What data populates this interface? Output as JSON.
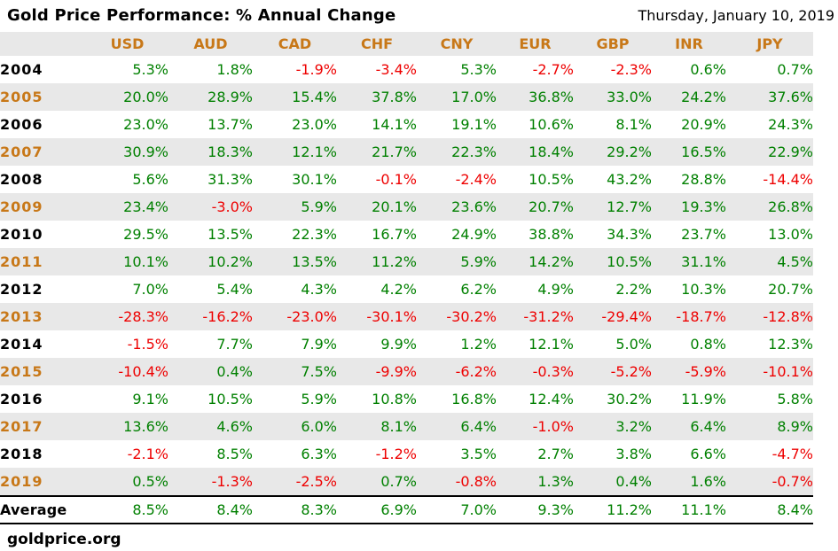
{
  "title": "Gold Price Performance: % Annual Change",
  "date": "Thursday, January 10, 2019",
  "source": "goldprice.org",
  "colors": {
    "accent_orange": "#C87818",
    "positive_green": "#008000",
    "negative_red": "#EE0000",
    "band_gray": "#E8E8E8",
    "text_black": "#000000"
  },
  "chart_data": {
    "type": "table",
    "title": "Gold Price Performance: % Annual Change",
    "value_format": "percent_one_decimal",
    "columns": [
      "USD",
      "AUD",
      "CAD",
      "CHF",
      "CNY",
      "EUR",
      "GBP",
      "INR",
      "JPY"
    ],
    "rows": [
      {
        "year": "2004",
        "values": [
          5.3,
          1.8,
          -1.9,
          -3.4,
          5.3,
          -2.7,
          -2.3,
          0.6,
          0.7
        ]
      },
      {
        "year": "2005",
        "values": [
          20.0,
          28.9,
          15.4,
          37.8,
          17.0,
          36.8,
          33.0,
          24.2,
          37.6
        ]
      },
      {
        "year": "2006",
        "values": [
          23.0,
          13.7,
          23.0,
          14.1,
          19.1,
          10.6,
          8.1,
          20.9,
          24.3
        ]
      },
      {
        "year": "2007",
        "values": [
          30.9,
          18.3,
          12.1,
          21.7,
          22.3,
          18.4,
          29.2,
          16.5,
          22.9
        ]
      },
      {
        "year": "2008",
        "values": [
          5.6,
          31.3,
          30.1,
          -0.1,
          -2.4,
          10.5,
          43.2,
          28.8,
          -14.4
        ]
      },
      {
        "year": "2009",
        "values": [
          23.4,
          -3.0,
          5.9,
          20.1,
          23.6,
          20.7,
          12.7,
          19.3,
          26.8
        ]
      },
      {
        "year": "2010",
        "values": [
          29.5,
          13.5,
          22.3,
          16.7,
          24.9,
          38.8,
          34.3,
          23.7,
          13.0
        ]
      },
      {
        "year": "2011",
        "values": [
          10.1,
          10.2,
          13.5,
          11.2,
          5.9,
          14.2,
          10.5,
          31.1,
          4.5
        ]
      },
      {
        "year": "2012",
        "values": [
          7.0,
          5.4,
          4.3,
          4.2,
          6.2,
          4.9,
          2.2,
          10.3,
          20.7
        ]
      },
      {
        "year": "2013",
        "values": [
          -28.3,
          -16.2,
          -23.0,
          -30.1,
          -30.2,
          -31.2,
          -29.4,
          -18.7,
          -12.8
        ]
      },
      {
        "year": "2014",
        "values": [
          -1.5,
          7.7,
          7.9,
          9.9,
          1.2,
          12.1,
          5.0,
          0.8,
          12.3
        ]
      },
      {
        "year": "2015",
        "values": [
          -10.4,
          0.4,
          7.5,
          -9.9,
          -6.2,
          -0.3,
          -5.2,
          -5.9,
          -10.1
        ]
      },
      {
        "year": "2016",
        "values": [
          9.1,
          10.5,
          5.9,
          10.8,
          16.8,
          12.4,
          30.2,
          11.9,
          5.8
        ]
      },
      {
        "year": "2017",
        "values": [
          13.6,
          4.6,
          6.0,
          8.1,
          6.4,
          -1.0,
          3.2,
          6.4,
          8.9
        ]
      },
      {
        "year": "2018",
        "values": [
          -2.1,
          8.5,
          6.3,
          -1.2,
          3.5,
          2.7,
          3.8,
          6.6,
          -4.7
        ]
      },
      {
        "year": "2019",
        "values": [
          0.5,
          -1.3,
          -2.5,
          0.7,
          -0.8,
          1.3,
          0.4,
          1.6,
          -0.7
        ]
      }
    ],
    "average_label": "Average",
    "average_values": [
      8.5,
      8.4,
      8.3,
      6.9,
      7.0,
      9.3,
      11.2,
      11.1,
      8.4
    ]
  }
}
